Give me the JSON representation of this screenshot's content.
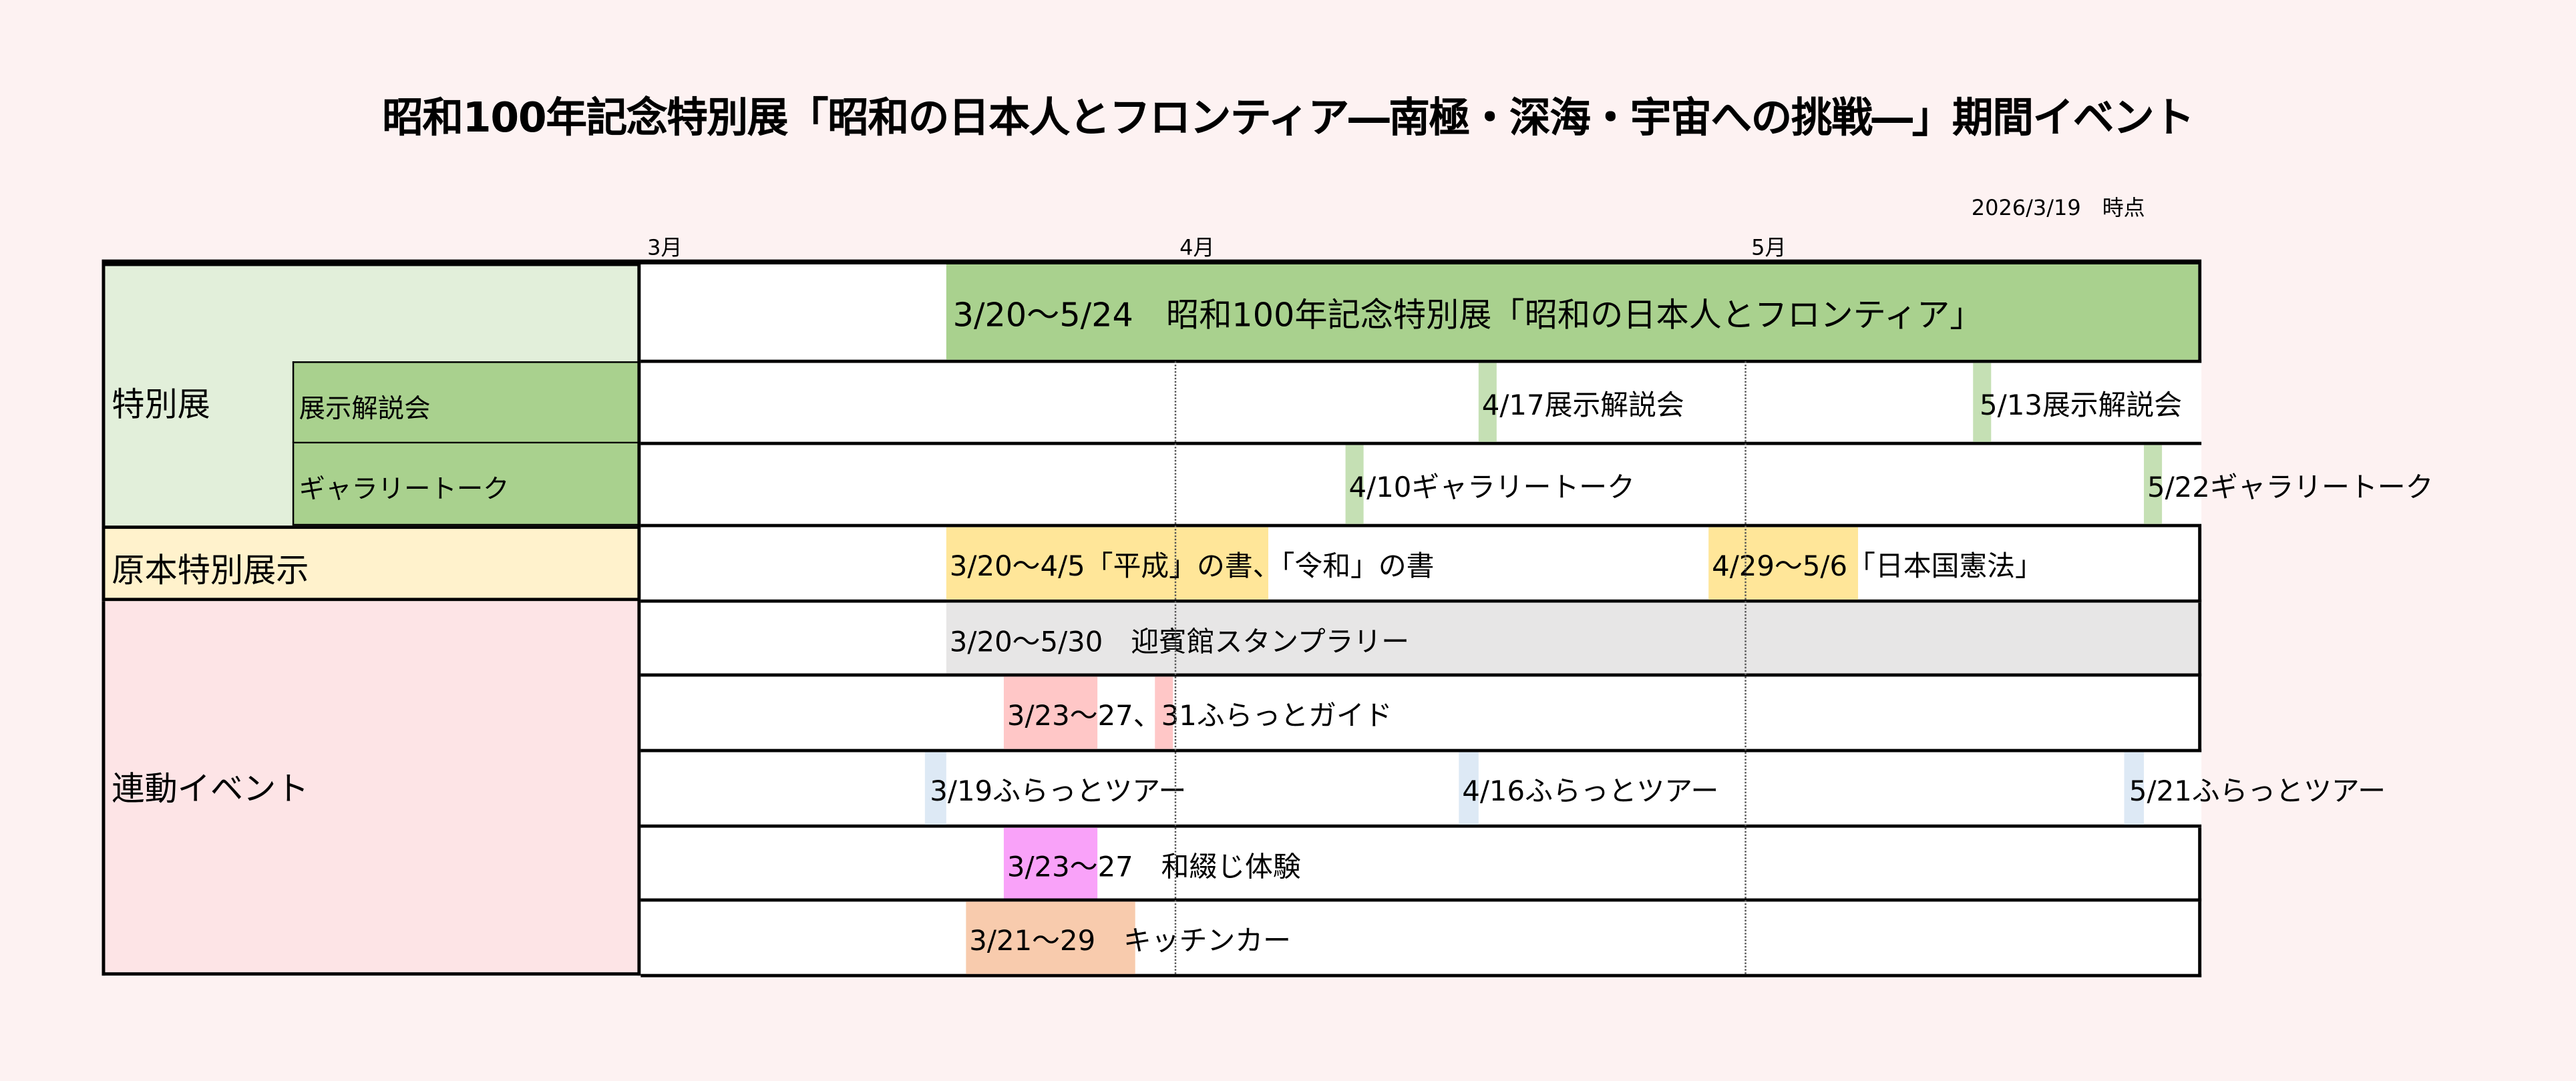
{
  "title": "昭和100年記念特別展「昭和の日本人とフロンティア―南極・深海・宇宙への挑戦―」期間イベント",
  "as_of": "2026/3/19　時点",
  "colors": {
    "background": "#fdf2f2",
    "green": "#a9d18e",
    "light_green": "#c5e0b4",
    "green_bg": "#e2efda",
    "yellow": "#ffe699",
    "yellow_bg": "#fff2cc",
    "gray": "#e7e6e6",
    "pink_bg": "#fde4e6",
    "salmon": "#ffc7c7",
    "blue": "#dde9f5",
    "magenta": "#f9a2f9",
    "peach": "#f8cbad"
  },
  "chart_data": {
    "type": "gantt",
    "title": "昭和100年記念特別展「昭和の日本人とフロンティア―南極・深海・宇宙への挑戦―」期間イベント",
    "months": [
      "3月",
      "4月",
      "5月"
    ],
    "categories": {
      "special": "特別展",
      "gallery_explain": "展示解説会",
      "gallery_talk": "ギャラリートーク",
      "original": "原本特別展示",
      "linked": "連動イベント"
    },
    "rows": [
      {
        "category": "特別展",
        "events": [
          {
            "start": "3/20",
            "end": "5/24",
            "label": "3/20～5/24　昭和100年記念特別展「昭和の日本人とフロンティア」"
          }
        ]
      },
      {
        "category": "展示解説会",
        "events": [
          {
            "start": "4/17",
            "end": "4/17",
            "label": "4/17展示解説会"
          },
          {
            "start": "5/13",
            "end": "5/13",
            "label": "5/13展示解説会"
          }
        ]
      },
      {
        "category": "ギャラリートーク",
        "events": [
          {
            "start": "4/10",
            "end": "4/10",
            "label": "4/10ギャラリートーク"
          },
          {
            "start": "5/22",
            "end": "5/22",
            "label": "5/22ギャラリートーク"
          }
        ]
      },
      {
        "category": "原本特別展示",
        "events": [
          {
            "start": "3/20",
            "end": "4/5",
            "label": "3/20～4/5「平成」の書、「令和」の書"
          },
          {
            "start": "4/29",
            "end": "5/6",
            "label": "4/29～5/6「日本国憲法」"
          }
        ]
      },
      {
        "category": "連動イベント",
        "events": [
          {
            "start": "3/20",
            "end": "5/30",
            "label": "3/20～5/30　迎賓館スタンプラリー"
          }
        ]
      },
      {
        "category": "連動イベント",
        "events": [
          {
            "start": "3/23",
            "end": "3/27",
            "label": "3/23～27、31ふらっとガイド"
          },
          {
            "start": "3/31",
            "end": "3/31",
            "label": ""
          }
        ]
      },
      {
        "category": "連動イベント",
        "events": [
          {
            "start": "3/19",
            "end": "3/19",
            "label": "3/19ふらっとツアー"
          },
          {
            "start": "4/16",
            "end": "4/16",
            "label": "4/16ふらっとツアー"
          },
          {
            "start": "5/21",
            "end": "5/21",
            "label": "5/21ふらっとツアー"
          }
        ]
      },
      {
        "category": "連動イベント",
        "events": [
          {
            "start": "3/23",
            "end": "3/27",
            "label": "3/23～27　和綴じ体験"
          }
        ]
      },
      {
        "category": "連動イベント",
        "events": [
          {
            "start": "3/21",
            "end": "3/29",
            "label": "3/21～29　キッチンカー"
          }
        ]
      }
    ]
  }
}
